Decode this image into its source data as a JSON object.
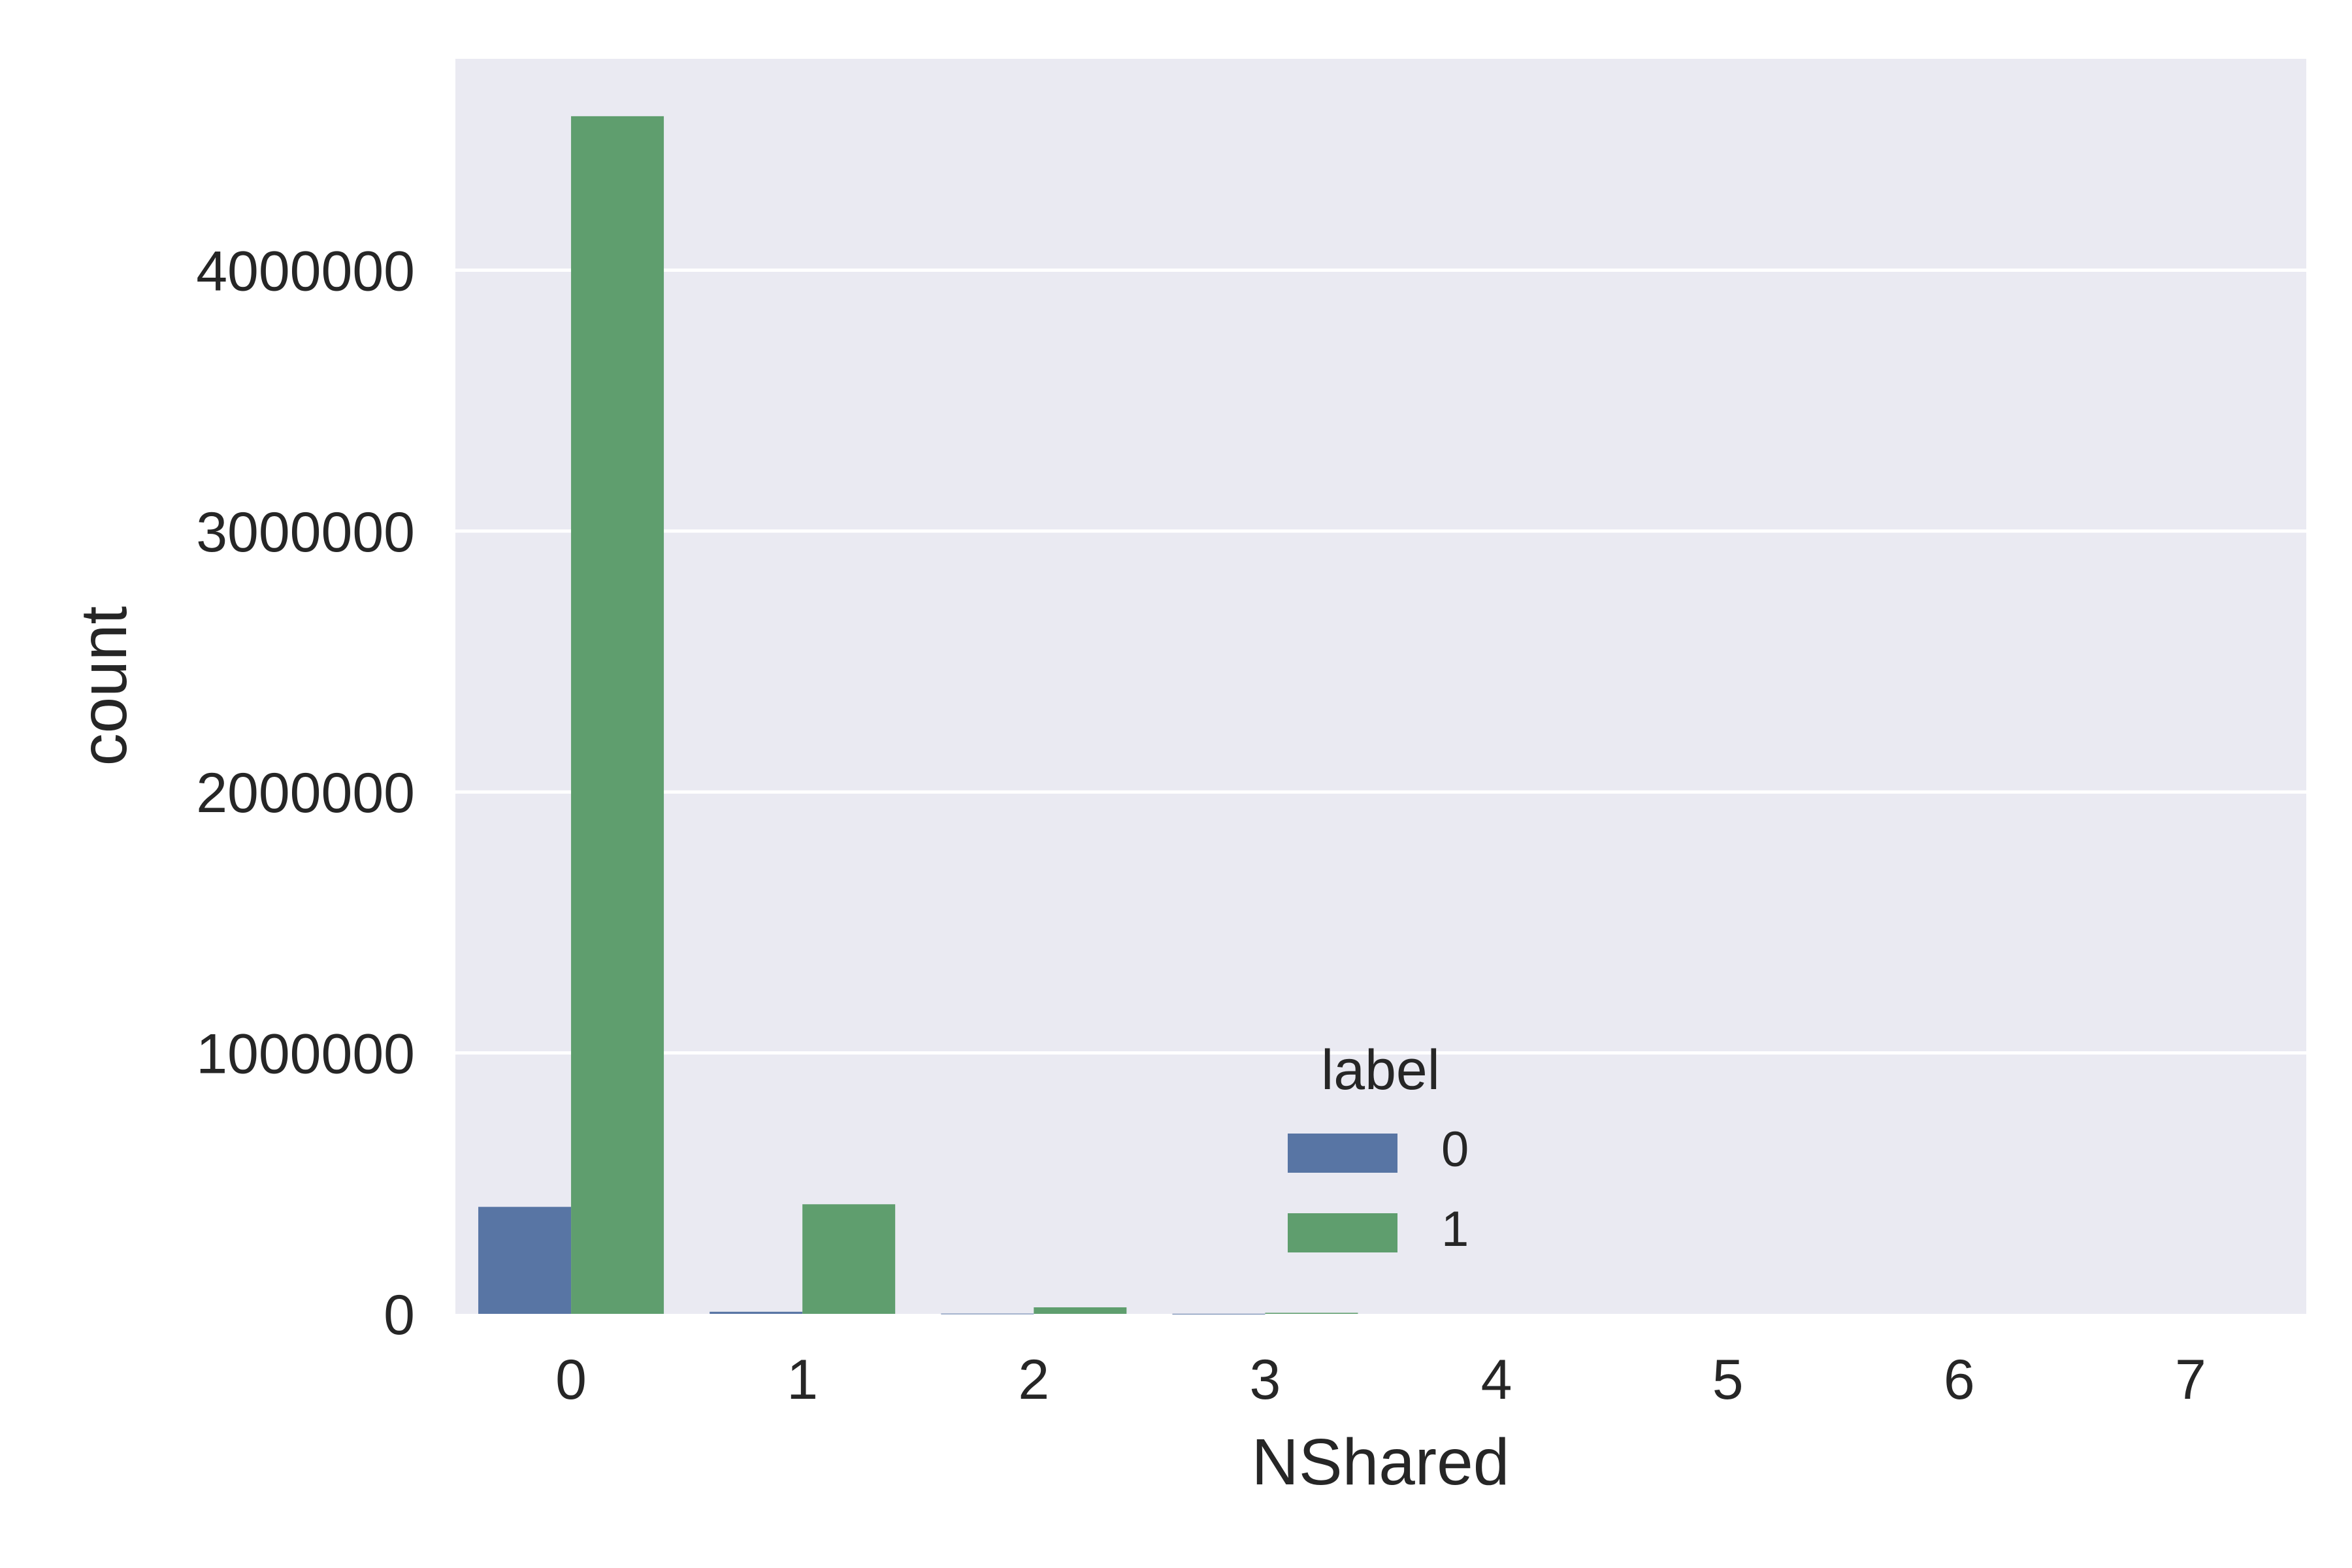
{
  "chart_data": {
    "type": "bar",
    "xlabel": "NShared",
    "ylabel": "count",
    "categories": [
      "0",
      "1",
      "2",
      "3",
      "4",
      "5",
      "6",
      "7"
    ],
    "series": [
      {
        "name": "0",
        "color": "#5875a4",
        "values": [
          410000,
          8000,
          1000,
          300,
          0,
          0,
          0,
          0
        ]
      },
      {
        "name": "1",
        "color": "#5f9e6e",
        "values": [
          4590000,
          420000,
          25000,
          4000,
          0,
          0,
          0,
          0
        ]
      }
    ],
    "ylim": [
      0,
      4810000
    ],
    "yticks": [
      0,
      1000000,
      2000000,
      3000000,
      4000000
    ],
    "ytick_labels": [
      "0",
      "1000000",
      "2000000",
      "3000000",
      "4000000"
    ],
    "legend": {
      "title": "label",
      "entries": [
        "0",
        "1"
      ],
      "placement": "lower center"
    },
    "style": {
      "background": "#eaeaf2",
      "grid": true,
      "grid_color": "#ffffff"
    }
  }
}
